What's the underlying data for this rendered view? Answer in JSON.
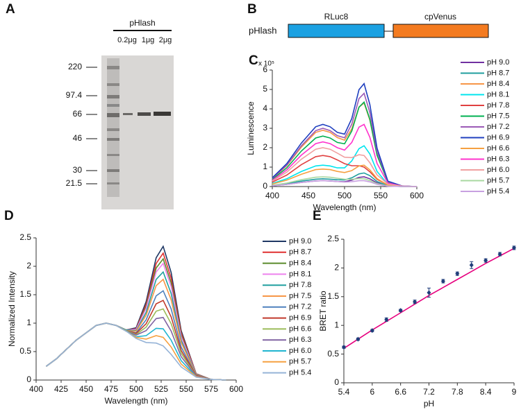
{
  "gel": {
    "panel_label": "A",
    "title": "pHlash",
    "lanes": [
      "0.2μg",
      "1μg",
      "2μg"
    ],
    "markers": [
      220,
      97.4,
      66,
      46,
      30,
      21.5
    ]
  },
  "construct": {
    "panel_label": "B",
    "name": "pHlash",
    "domains": [
      "RLuc8",
      "cpVenus"
    ]
  },
  "chart_data": [
    {
      "type": "line",
      "panel_label": "C",
      "x_label": "Wavelength (nm)",
      "y_label": "Luminescence",
      "y_unit": "x 10⁵",
      "xlim": [
        400,
        600
      ],
      "xticks": [
        400,
        450,
        500,
        550,
        600
      ],
      "ylim": [
        0,
        6
      ],
      "yticks": [
        0,
        1,
        2,
        3,
        4,
        5,
        6
      ],
      "legend": "right",
      "x": [
        400,
        420,
        440,
        460,
        470,
        480,
        490,
        500,
        510,
        520,
        527,
        535,
        545,
        560,
        580,
        600
      ],
      "series": [
        {
          "name": "pH 9.0",
          "color": "#7030a0",
          "values": [
            0.04,
            0.11,
            0.21,
            0.29,
            0.3,
            0.29,
            0.26,
            0.25,
            0.33,
            0.47,
            0.5,
            0.4,
            0.19,
            0.03,
            0,
            0
          ]
        },
        {
          "name": "pH 8.7",
          "color": "#1f9e9e",
          "values": [
            0.06,
            0.15,
            0.28,
            0.38,
            0.4,
            0.38,
            0.35,
            0.34,
            0.45,
            0.65,
            0.7,
            0.56,
            0.26,
            0.04,
            0,
            0
          ]
        },
        {
          "name": "pH 8.4",
          "color": "#f79646",
          "values": [
            0.41,
            1.07,
            2.02,
            2.79,
            2.9,
            2.79,
            2.52,
            2.39,
            2.97,
            4.09,
            4.3,
            3.42,
            1.6,
            0.24,
            0.02,
            0
          ]
        },
        {
          "name": "pH 8.1",
          "color": "#00e5ee",
          "values": [
            0.16,
            0.4,
            0.77,
            1.06,
            1.1,
            1.06,
            0.96,
            0.96,
            1.32,
            1.95,
            2.1,
            1.68,
            0.78,
            0.11,
            0.01,
            0
          ]
        },
        {
          "name": "pH 7.8",
          "color": "#e04040",
          "values": [
            0.23,
            0.59,
            1.12,
            1.54,
            1.6,
            1.54,
            1.37,
            1.18,
            1.07,
            1.07,
            1.0,
            0.76,
            0.37,
            0.08,
            0.01,
            0
          ]
        },
        {
          "name": "pH 7.5",
          "color": "#00b050",
          "values": [
            0.37,
            0.96,
            1.82,
            2.5,
            2.6,
            2.5,
            2.27,
            2.2,
            2.86,
            4.09,
            4.35,
            3.47,
            1.61,
            0.23,
            0.02,
            0
          ]
        },
        {
          "name": "pH 7.2",
          "color": "#9b59b6",
          "values": [
            0.42,
            1.1,
            2.09,
            2.88,
            3,
            2.88,
            2.62,
            2.51,
            3.21,
            4.53,
            4.8,
            3.82,
            1.78,
            0.26,
            0.02,
            0
          ]
        },
        {
          "name": "pH 6.9",
          "color": "#1f3fbf",
          "values": [
            0.45,
            1.18,
            2.23,
            3.08,
            3.2,
            3.08,
            2.79,
            2.7,
            3.5,
            4.99,
            5.3,
            4.23,
            1.97,
            0.28,
            0.03,
            0
          ]
        },
        {
          "name": "pH 6.6",
          "color": "#f5a040",
          "values": [
            0.13,
            0.33,
            0.63,
            0.87,
            0.9,
            0.87,
            0.78,
            0.72,
            0.82,
            1.06,
            1.1,
            0.86,
            0.41,
            0.07,
            0.01,
            0
          ]
        },
        {
          "name": "pH 6.3",
          "color": "#ff33cc",
          "values": [
            0.32,
            0.85,
            1.61,
            2.21,
            2.3,
            2.21,
            2.0,
            1.88,
            2.27,
            3.06,
            3.2,
            2.54,
            1.19,
            0.18,
            0.02,
            0
          ]
        },
        {
          "name": "pH 6.0",
          "color": "#f0a0a0",
          "values": [
            0.28,
            0.74,
            1.4,
            1.92,
            2,
            1.92,
            1.72,
            1.51,
            1.49,
            1.64,
            1.6,
            1.23,
            0.6,
            0.12,
            0.02,
            0
          ]
        },
        {
          "name": "pH 5.7",
          "color": "#a8d8a0",
          "values": [
            0.07,
            0.18,
            0.35,
            0.48,
            0.5,
            0.48,
            0.43,
            0.38,
            0.37,
            0.41,
            0.4,
            0.31,
            0.15,
            0.03,
            0,
            0
          ]
        },
        {
          "name": "pH 5.4",
          "color": "#c8a0e0",
          "values": [
            0.04,
            0.11,
            0.21,
            0.29,
            0.3,
            0.29,
            0.26,
            0.23,
            0.25,
            0.3,
            0.3,
            0.24,
            0.11,
            0.02,
            0,
            0
          ]
        }
      ]
    },
    {
      "type": "line",
      "panel_label": "D",
      "x_label": "Wavelength (nm)",
      "y_label": "Normalized Intensity",
      "xlim": [
        400,
        600
      ],
      "xticks": [
        400,
        425,
        450,
        475,
        500,
        525,
        550,
        575,
        600
      ],
      "ylim": [
        0,
        2.5
      ],
      "yticks": [
        0,
        0.5,
        1,
        1.5,
        2,
        2.5
      ],
      "legend": "right",
      "x": [
        410,
        420,
        440,
        460,
        470,
        480,
        490,
        500,
        510,
        520,
        527,
        535,
        545,
        560,
        575,
        590
      ],
      "series": [
        {
          "name": "pH 9.0",
          "color": "#1f3864",
          "values": [
            0.24,
            0.37,
            0.7,
            0.96,
            1,
            0.96,
            0.88,
            0.92,
            1.38,
            2.15,
            2.35,
            1.89,
            0.87,
            0.11,
            0.01,
            0
          ]
        },
        {
          "name": "pH 8.7",
          "color": "#e03030",
          "values": [
            0.24,
            0.37,
            0.7,
            0.96,
            1,
            0.96,
            0.88,
            0.9,
            1.33,
            2.05,
            2.23,
            1.79,
            0.83,
            0.11,
            0.01,
            0
          ]
        },
        {
          "name": "pH 8.4",
          "color": "#5a8a2a",
          "values": [
            0.24,
            0.37,
            0.7,
            0.96,
            1,
            0.96,
            0.88,
            0.89,
            1.29,
            1.97,
            2.13,
            1.71,
            0.79,
            0.1,
            0.01,
            0
          ]
        },
        {
          "name": "pH 8.1",
          "color": "#ee82ee",
          "values": [
            0.24,
            0.37,
            0.7,
            0.96,
            1,
            0.96,
            0.88,
            0.89,
            1.26,
            1.9,
            2.05,
            1.64,
            0.76,
            0.1,
            0.01,
            0
          ]
        },
        {
          "name": "pH 7.8",
          "color": "#20a0a0",
          "values": [
            0.24,
            0.37,
            0.7,
            0.96,
            1,
            0.96,
            0.88,
            0.87,
            1.19,
            1.77,
            1.9,
            1.52,
            0.7,
            0.1,
            0.01,
            0
          ]
        },
        {
          "name": "pH 7.5",
          "color": "#f79646",
          "values": [
            0.24,
            0.37,
            0.7,
            0.96,
            1,
            0.96,
            0.87,
            0.86,
            1.14,
            1.66,
            1.77,
            1.41,
            0.66,
            0.09,
            0.01,
            0
          ]
        },
        {
          "name": "pH 7.2",
          "color": "#4f81bd",
          "values": [
            0.24,
            0.37,
            0.7,
            0.96,
            1,
            0.96,
            0.87,
            0.83,
            1.06,
            1.48,
            1.57,
            1.25,
            0.58,
            0.08,
            0.01,
            0
          ]
        },
        {
          "name": "pH 6.9",
          "color": "#c0392b",
          "values": [
            0.24,
            0.37,
            0.7,
            0.96,
            1,
            0.96,
            0.87,
            0.82,
            0.99,
            1.34,
            1.4,
            1.11,
            0.52,
            0.08,
            0.01,
            0
          ]
        },
        {
          "name": "pH 6.6",
          "color": "#9bbb59",
          "values": [
            0.24,
            0.37,
            0.7,
            0.96,
            1,
            0.96,
            0.87,
            0.8,
            0.93,
            1.21,
            1.25,
            0.99,
            0.47,
            0.07,
            0.01,
            0
          ]
        },
        {
          "name": "pH 6.3",
          "color": "#8064a2",
          "values": [
            0.24,
            0.37,
            0.7,
            0.96,
            1,
            0.96,
            0.86,
            0.79,
            0.87,
            1.08,
            1.1,
            0.86,
            0.41,
            0.07,
            0.01,
            0
          ]
        },
        {
          "name": "pH 6.0",
          "color": "#1fb5d0",
          "values": [
            0.24,
            0.37,
            0.7,
            0.96,
            1,
            0.96,
            0.86,
            0.76,
            0.78,
            0.91,
            0.9,
            0.7,
            0.34,
            0.06,
            0.01,
            0
          ]
        },
        {
          "name": "pH 5.7",
          "color": "#f5a040",
          "values": [
            0.24,
            0.37,
            0.7,
            0.96,
            1,
            0.96,
            0.86,
            0.75,
            0.72,
            0.78,
            0.75,
            0.58,
            0.28,
            0.06,
            0.01,
            0
          ]
        },
        {
          "name": "pH 5.4",
          "color": "#95b3d7",
          "values": [
            0.24,
            0.37,
            0.7,
            0.96,
            1,
            0.96,
            0.86,
            0.73,
            0.66,
            0.65,
            0.6,
            0.45,
            0.23,
            0.05,
            0.01,
            0
          ]
        }
      ]
    },
    {
      "type": "scatter",
      "panel_label": "E",
      "x_label": "pH",
      "y_label": "BRET ratio",
      "xlim": [
        5.4,
        9
      ],
      "xticks": [
        5.4,
        6,
        6.6,
        7.2,
        7.8,
        8.4,
        9
      ],
      "ylim": [
        0,
        2.5
      ],
      "yticks": [
        0,
        0.5,
        1,
        1.5,
        2,
        2.5
      ],
      "x": [
        5.4,
        5.7,
        6.0,
        6.3,
        6.6,
        6.9,
        7.2,
        7.5,
        7.8,
        8.1,
        8.4,
        8.7,
        9.0
      ],
      "values": [
        0.62,
        0.76,
        0.91,
        1.1,
        1.26,
        1.41,
        1.57,
        1.77,
        1.9,
        2.05,
        2.13,
        2.24,
        2.35
      ],
      "errors": [
        0.02,
        0.02,
        0.02,
        0.03,
        0.02,
        0.03,
        0.08,
        0.03,
        0.03,
        0.06,
        0.03,
        0.03,
        0.03
      ],
      "fit": [
        0.6,
        0.76,
        0.92,
        1.07,
        1.22,
        1.37,
        1.52,
        1.66,
        1.8,
        1.94,
        2.08,
        2.21,
        2.34
      ],
      "color": "#1f3d7a",
      "fit_color": "#e6007e"
    }
  ]
}
